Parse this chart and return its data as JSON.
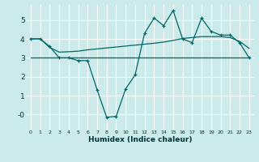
{
  "title": "",
  "xlabel": "Humidex (Indice chaleur)",
  "bg_color": "#cceaea",
  "grid_color": "#ffffff",
  "line_color": "#006666",
  "xlim": [
    -0.5,
    23.5
  ],
  "ylim": [
    -0.8,
    5.8
  ],
  "xticks": [
    0,
    1,
    2,
    3,
    4,
    5,
    6,
    7,
    8,
    9,
    10,
    11,
    12,
    13,
    14,
    15,
    16,
    17,
    18,
    19,
    20,
    21,
    22,
    23
  ],
  "yticks": [
    0,
    1,
    2,
    3,
    4,
    5
  ],
  "ytick_labels": [
    "-0",
    "1",
    "2",
    "3",
    "4",
    "5"
  ],
  "line1_x": [
    0,
    1,
    2,
    3,
    4,
    5,
    6,
    7,
    8,
    9,
    10,
    11,
    12,
    13,
    14,
    15,
    16,
    17,
    18,
    19,
    20,
    21,
    22,
    23
  ],
  "line1_y": [
    4.0,
    4.0,
    3.6,
    3.0,
    3.0,
    2.85,
    2.85,
    1.3,
    -0.15,
    -0.1,
    1.35,
    2.1,
    4.3,
    5.1,
    4.7,
    5.5,
    4.0,
    3.8,
    5.1,
    4.4,
    4.2,
    4.2,
    3.8,
    3.0
  ],
  "line2_x": [
    0,
    1,
    2,
    3,
    4,
    5,
    6,
    7,
    8,
    9,
    10,
    11,
    12,
    13,
    14,
    15,
    16,
    17,
    18,
    19,
    20,
    21,
    22,
    23
  ],
  "line2_y": [
    4.0,
    4.0,
    3.55,
    3.3,
    3.32,
    3.35,
    3.42,
    3.47,
    3.52,
    3.57,
    3.62,
    3.67,
    3.72,
    3.77,
    3.83,
    3.92,
    4.02,
    4.07,
    4.12,
    4.12,
    4.12,
    4.07,
    3.87,
    3.5
  ],
  "line3_x": [
    0,
    23
  ],
  "line3_y": [
    3.0,
    3.0
  ]
}
